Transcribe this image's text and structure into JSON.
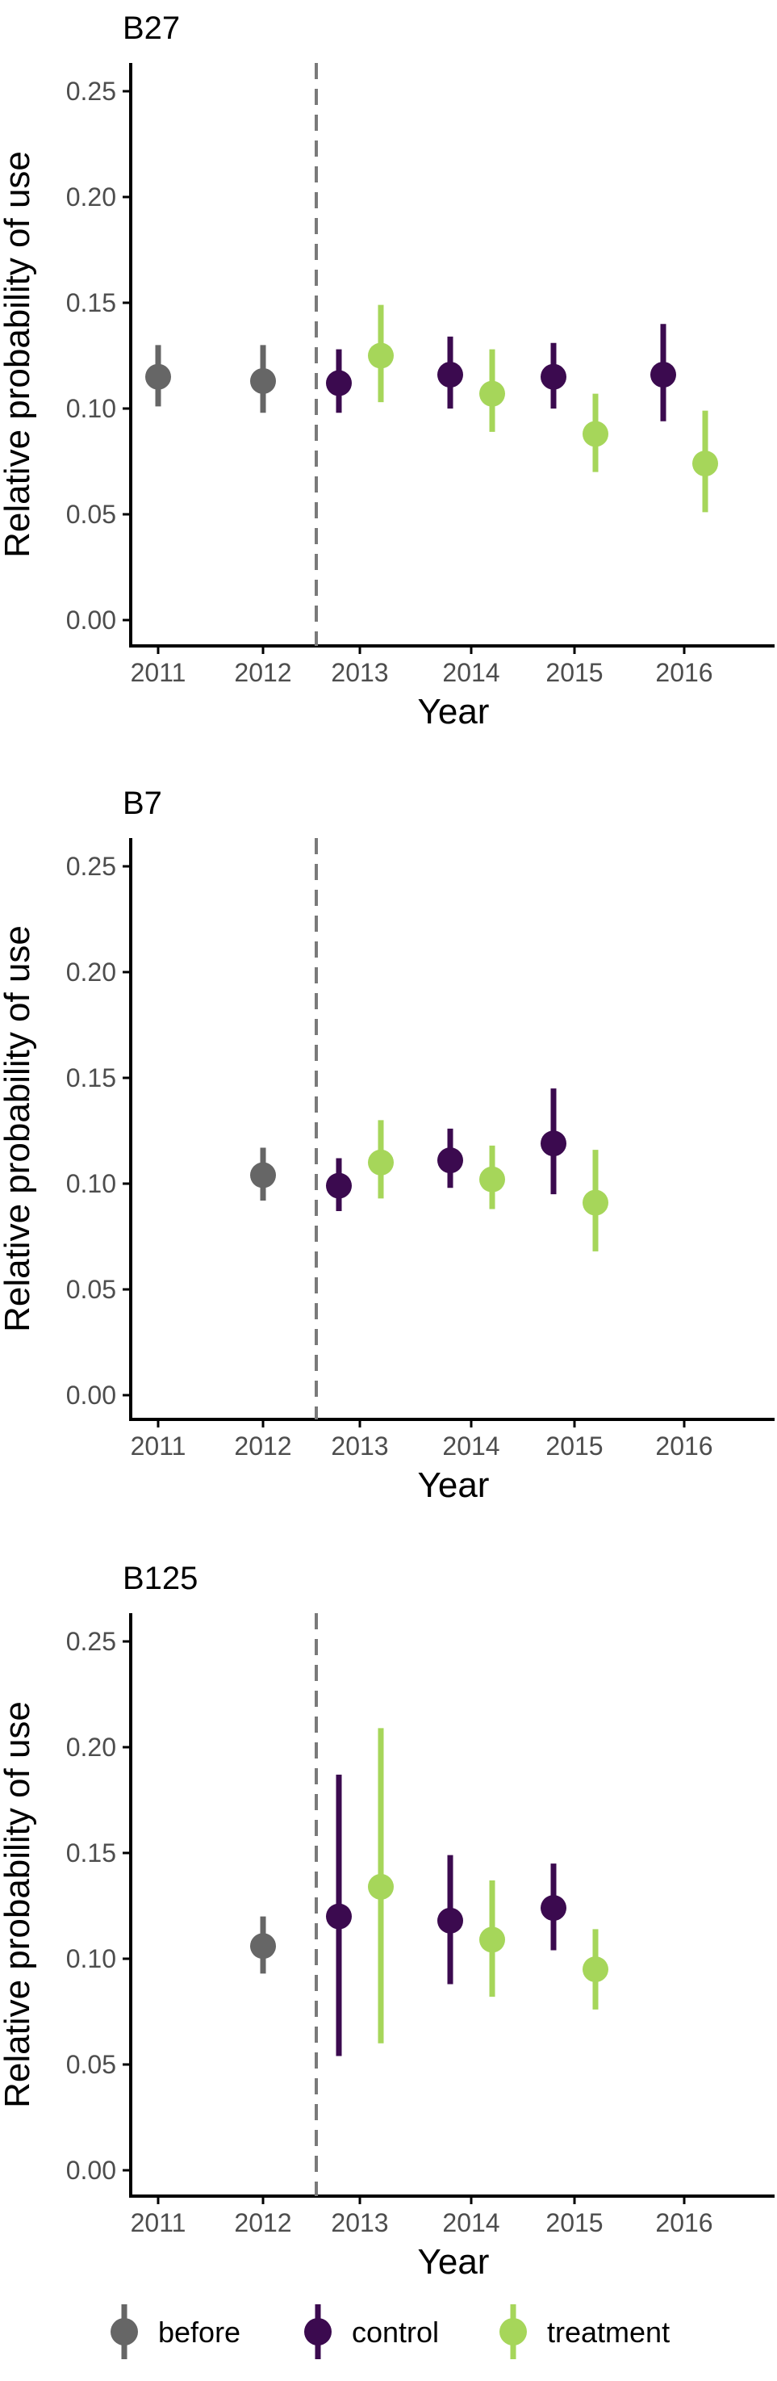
{
  "chart_data": [
    {
      "type": "scatter",
      "title": "B27",
      "xlabel": "Year",
      "ylabel": "Relative probability of use",
      "categories": [
        "2011",
        "2012",
        "2013",
        "2014",
        "2015",
        "2016"
      ],
      "ylim": [
        0,
        0.26
      ],
      "yticks": [
        "0.00",
        "0.05",
        "0.10",
        "0.15",
        "0.20",
        "0.25"
      ],
      "yticks_values": [
        0,
        0.05,
        0.1,
        0.15,
        0.2,
        0.25
      ],
      "reference_line_between": [
        "2012",
        "2013"
      ],
      "grid": false,
      "series": [
        {
          "name": "before",
          "points": [
            {
              "x": "2011",
              "y": 0.115,
              "lo": 0.101,
              "hi": 0.13
            },
            {
              "x": "2012",
              "y": 0.113,
              "lo": 0.098,
              "hi": 0.13
            }
          ]
        },
        {
          "name": "control",
          "points": [
            {
              "x": "2013",
              "y": 0.112,
              "lo": 0.098,
              "hi": 0.128
            },
            {
              "x": "2014",
              "y": 0.116,
              "lo": 0.1,
              "hi": 0.134
            },
            {
              "x": "2015",
              "y": 0.115,
              "lo": 0.1,
              "hi": 0.131
            },
            {
              "x": "2016",
              "y": 0.116,
              "lo": 0.094,
              "hi": 0.14
            }
          ]
        },
        {
          "name": "treatment",
          "points": [
            {
              "x": "2013",
              "y": 0.125,
              "lo": 0.103,
              "hi": 0.149
            },
            {
              "x": "2014",
              "y": 0.107,
              "lo": 0.089,
              "hi": 0.128
            },
            {
              "x": "2015",
              "y": 0.088,
              "lo": 0.07,
              "hi": 0.107
            },
            {
              "x": "2016",
              "y": 0.074,
              "lo": 0.051,
              "hi": 0.099
            }
          ]
        }
      ]
    },
    {
      "type": "scatter",
      "title": "B7",
      "xlabel": "Year",
      "ylabel": "Relative probability of use",
      "categories": [
        "2011",
        "2012",
        "2013",
        "2014",
        "2015",
        "2016"
      ],
      "ylim": [
        0,
        0.26
      ],
      "yticks": [
        "0.00",
        "0.05",
        "0.10",
        "0.15",
        "0.20",
        "0.25"
      ],
      "yticks_values": [
        0,
        0.05,
        0.1,
        0.15,
        0.2,
        0.25
      ],
      "reference_line_between": [
        "2012",
        "2013"
      ],
      "grid": false,
      "series": [
        {
          "name": "before",
          "points": [
            {
              "x": "2012",
              "y": 0.104,
              "lo": 0.092,
              "hi": 0.117
            }
          ]
        },
        {
          "name": "control",
          "points": [
            {
              "x": "2013",
              "y": 0.099,
              "lo": 0.087,
              "hi": 0.112
            },
            {
              "x": "2014",
              "y": 0.111,
              "lo": 0.098,
              "hi": 0.126
            },
            {
              "x": "2015",
              "y": 0.119,
              "lo": 0.095,
              "hi": 0.145
            }
          ]
        },
        {
          "name": "treatment",
          "points": [
            {
              "x": "2013",
              "y": 0.11,
              "lo": 0.093,
              "hi": 0.13
            },
            {
              "x": "2014",
              "y": 0.102,
              "lo": 0.088,
              "hi": 0.118
            },
            {
              "x": "2015",
              "y": 0.091,
              "lo": 0.068,
              "hi": 0.116
            }
          ]
        }
      ]
    },
    {
      "type": "scatter",
      "title": "B125",
      "xlabel": "Year",
      "ylabel": "Relative probability of use",
      "categories": [
        "2011",
        "2012",
        "2013",
        "2014",
        "2015",
        "2016"
      ],
      "ylim": [
        0,
        0.26
      ],
      "yticks": [
        "0.00",
        "0.05",
        "0.10",
        "0.15",
        "0.20",
        "0.25"
      ],
      "yticks_values": [
        0,
        0.05,
        0.1,
        0.15,
        0.2,
        0.25
      ],
      "reference_line_between": [
        "2012",
        "2013"
      ],
      "grid": false,
      "series": [
        {
          "name": "before",
          "points": [
            {
              "x": "2012",
              "y": 0.106,
              "lo": 0.093,
              "hi": 0.12
            }
          ]
        },
        {
          "name": "control",
          "points": [
            {
              "x": "2013",
              "y": 0.12,
              "lo": 0.054,
              "hi": 0.187
            },
            {
              "x": "2014",
              "y": 0.118,
              "lo": 0.088,
              "hi": 0.149
            },
            {
              "x": "2015",
              "y": 0.124,
              "lo": 0.104,
              "hi": 0.145
            }
          ]
        },
        {
          "name": "treatment",
          "points": [
            {
              "x": "2013",
              "y": 0.134,
              "lo": 0.06,
              "hi": 0.209
            },
            {
              "x": "2014",
              "y": 0.109,
              "lo": 0.082,
              "hi": 0.137
            },
            {
              "x": "2015",
              "y": 0.095,
              "lo": 0.076,
              "hi": 0.114
            }
          ]
        }
      ]
    }
  ],
  "legend": {
    "placement": "bottom",
    "items": [
      {
        "key": "before",
        "label": "before",
        "color": "#666666"
      },
      {
        "key": "control",
        "label": "control",
        "color": "#3b0a4f"
      },
      {
        "key": "treatment",
        "label": "treatment",
        "color": "#a6d65a"
      }
    ]
  },
  "colors": {
    "before": "#666666",
    "control": "#3b0a4f",
    "treatment": "#a6d65a",
    "reference_line": "#7a7a7a",
    "axis": "#000000"
  }
}
